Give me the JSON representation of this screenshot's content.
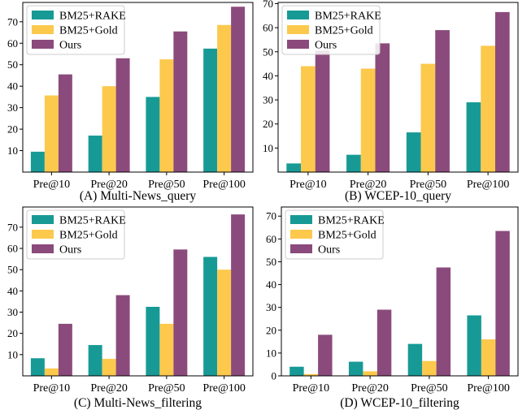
{
  "colors": {
    "BM25+RAKE": "#179a96",
    "BM25+Gold": "#fcc94d",
    "Ours": "#8b4a7c"
  },
  "chart_data": [
    {
      "type": "bar",
      "caption": "(A) Multi-News_query",
      "categories": [
        "Pre@10",
        "Pre@20",
        "Pre@50",
        "Pre@100"
      ],
      "series": [
        {
          "name": "BM25+RAKE",
          "values": [
            9.5,
            17,
            35,
            57.5
          ]
        },
        {
          "name": "BM25+Gold",
          "values": [
            35.7,
            40,
            52.5,
            68.5
          ]
        },
        {
          "name": "Ours",
          "values": [
            45.5,
            53,
            65.5,
            77
          ]
        }
      ],
      "yticks": [
        10,
        20,
        30,
        40,
        50,
        60,
        70
      ],
      "ylim": [
        0,
        79
      ],
      "legend": "top-left"
    },
    {
      "type": "bar",
      "caption": "(B) WCEP-10_query",
      "categories": [
        "Pre@10",
        "Pre@20",
        "Pre@50",
        "Pre@100"
      ],
      "series": [
        {
          "name": "BM25+RAKE",
          "values": [
            3.6,
            7.2,
            16.5,
            29
          ]
        },
        {
          "name": "BM25+Gold",
          "values": [
            44,
            43,
            45,
            52.5
          ]
        },
        {
          "name": "Ours",
          "values": [
            50.5,
            53.5,
            59,
            66.5
          ]
        }
      ],
      "yticks": [
        10,
        20,
        30,
        40,
        50,
        60,
        70
      ],
      "ylim": [
        0,
        70.5
      ],
      "legend": "top-left"
    },
    {
      "type": "bar",
      "caption": "(C) Multi-News_filtering",
      "categories": [
        "Pre@10",
        "Pre@20",
        "Pre@50",
        "Pre@100"
      ],
      "series": [
        {
          "name": "BM25+RAKE",
          "values": [
            8.3,
            14.5,
            32.5,
            56
          ]
        },
        {
          "name": "BM25+Gold",
          "values": [
            3.5,
            8,
            24.5,
            50
          ]
        },
        {
          "name": "Ours",
          "values": [
            24.5,
            38,
            59.5,
            76
          ]
        }
      ],
      "yticks": [
        10,
        20,
        30,
        40,
        50,
        60,
        70
      ],
      "ylim": [
        0,
        79.5
      ],
      "legend": "top-left"
    },
    {
      "type": "bar",
      "caption": "(D) WCEP-10_filtering",
      "categories": [
        "Pre@10",
        "Pre@20",
        "Pre@50",
        "Pre@100"
      ],
      "series": [
        {
          "name": "BM25+RAKE",
          "values": [
            4,
            6.2,
            14,
            26.5
          ]
        },
        {
          "name": "BM25+Gold",
          "values": [
            0.8,
            2,
            6.5,
            16
          ]
        },
        {
          "name": "Ours",
          "values": [
            18,
            29,
            47.5,
            63.5
          ]
        }
      ],
      "yticks": [
        0,
        10,
        20,
        30,
        40,
        50,
        60,
        70
      ],
      "ylim": [
        0,
        74
      ],
      "legend": "top-left"
    }
  ]
}
